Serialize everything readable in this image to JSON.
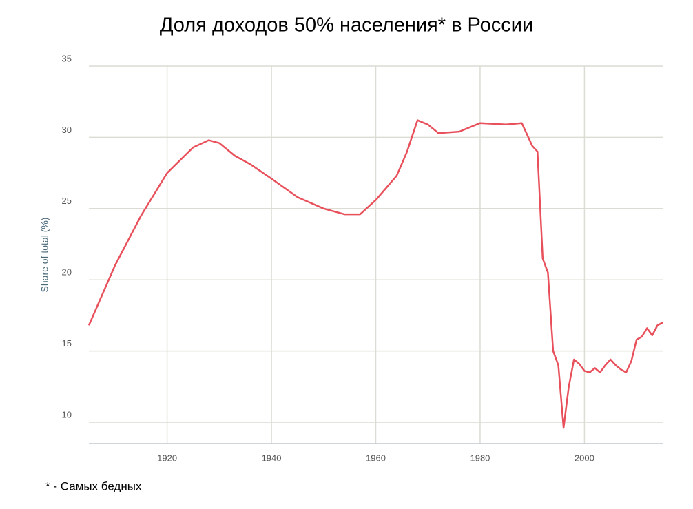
{
  "chart_data": {
    "type": "line",
    "title": "Доля доходов 50% населения* в России",
    "footnote": "* - Самых бедных",
    "y_label": "Share of total (%)",
    "x": [
      1905,
      1910,
      1915,
      1920,
      1925,
      1928,
      1930,
      1933,
      1936,
      1940,
      1945,
      1950,
      1954,
      1957,
      1960,
      1964,
      1966,
      1968,
      1970,
      1972,
      1976,
      1980,
      1985,
      1988,
      1989,
      1990,
      1991,
      1992,
      1993,
      1994,
      1995,
      1996,
      1997,
      1998,
      1999,
      2000,
      2001,
      2002,
      2003,
      2004,
      2005,
      2006,
      2007,
      2008,
      2009,
      2010,
      2011,
      2012,
      2013,
      2014,
      2015
    ],
    "series": [
      {
        "name": "Share of total (%)",
        "color": "#e8505b",
        "values": [
          16.8,
          21,
          24.5,
          27.5,
          29.3,
          29.8,
          29.6,
          28.7,
          28.1,
          27.1,
          25.8,
          25,
          24.6,
          24.6,
          25.6,
          27.3,
          29,
          31.2,
          30.9,
          30.3,
          30.4,
          31,
          30.9,
          31,
          30.2,
          29.4,
          29,
          21.5,
          20.5,
          15,
          14,
          9.6,
          12.5,
          14.4,
          14.1,
          13.6,
          13.5,
          13.8,
          13.5,
          14,
          14.4,
          14,
          13.7,
          13.5,
          14.3,
          15.8,
          16,
          16.6,
          16.1,
          16.8,
          17
        ]
      }
    ],
    "xlim": [
      1905,
      2015
    ],
    "xticks": [
      1920,
      1940,
      1960,
      1980,
      2000
    ],
    "ylim": [
      8.5,
      35
    ],
    "yticks": [
      10,
      15,
      20,
      25,
      30,
      35
    ],
    "grid": true
  }
}
